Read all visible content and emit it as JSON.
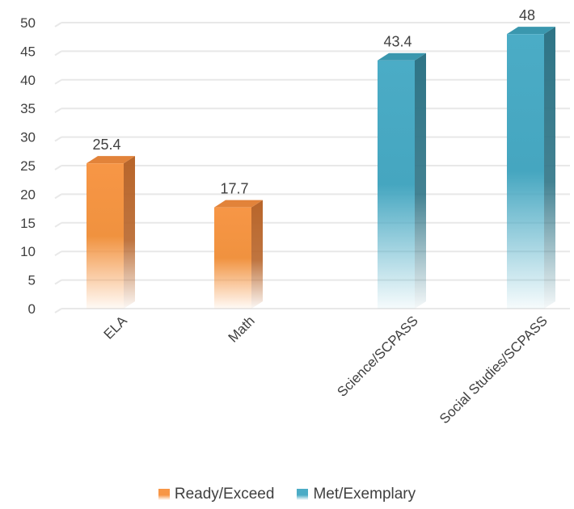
{
  "chart_data": {
    "type": "bar",
    "title": "",
    "xlabel": "",
    "ylabel": "",
    "ylim": [
      0,
      50
    ],
    "y_ticks": [
      0,
      5,
      10,
      15,
      20,
      25,
      30,
      35,
      40,
      45,
      50
    ],
    "grid": true,
    "legend_position": "bottom",
    "categories": [
      "ELA",
      "Math",
      "Science/SCPASS",
      "Social Studies/SCPASS"
    ],
    "series": [
      {
        "name": "Ready/Exceed",
        "color": "#F79646",
        "values": [
          25.4,
          17.7,
          null,
          null
        ]
      },
      {
        "name": "Met/Exemplary",
        "color": "#4BACC6",
        "values": [
          null,
          null,
          43.4,
          48
        ]
      }
    ],
    "data_labels": [
      "25.4",
      "17.7",
      "43.4",
      "48"
    ]
  }
}
